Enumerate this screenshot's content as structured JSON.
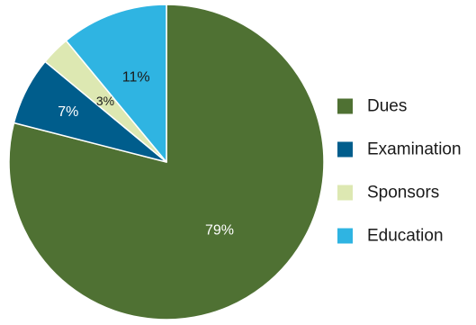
{
  "chart_data": {
    "type": "pie",
    "title": "",
    "categories": [
      "Dues",
      "Examination",
      "Sponsors",
      "Education"
    ],
    "values": [
      79,
      7,
      3,
      11
    ],
    "value_labels": [
      "79%",
      "7%",
      "3%",
      "11%"
    ],
    "unit": "%",
    "colors": [
      "#4f7133",
      "#005d8c",
      "#dde8b2",
      "#2fb4e2"
    ],
    "label_colors": [
      "#ffffff",
      "#ffffff",
      "#1a1a1a",
      "#1a1a1a"
    ],
    "start_angle_deg": 0,
    "direction": "clockwise",
    "legend": {
      "position": "right",
      "entries": [
        "Dues",
        "Examination",
        "Sponsors",
        "Education"
      ]
    }
  }
}
